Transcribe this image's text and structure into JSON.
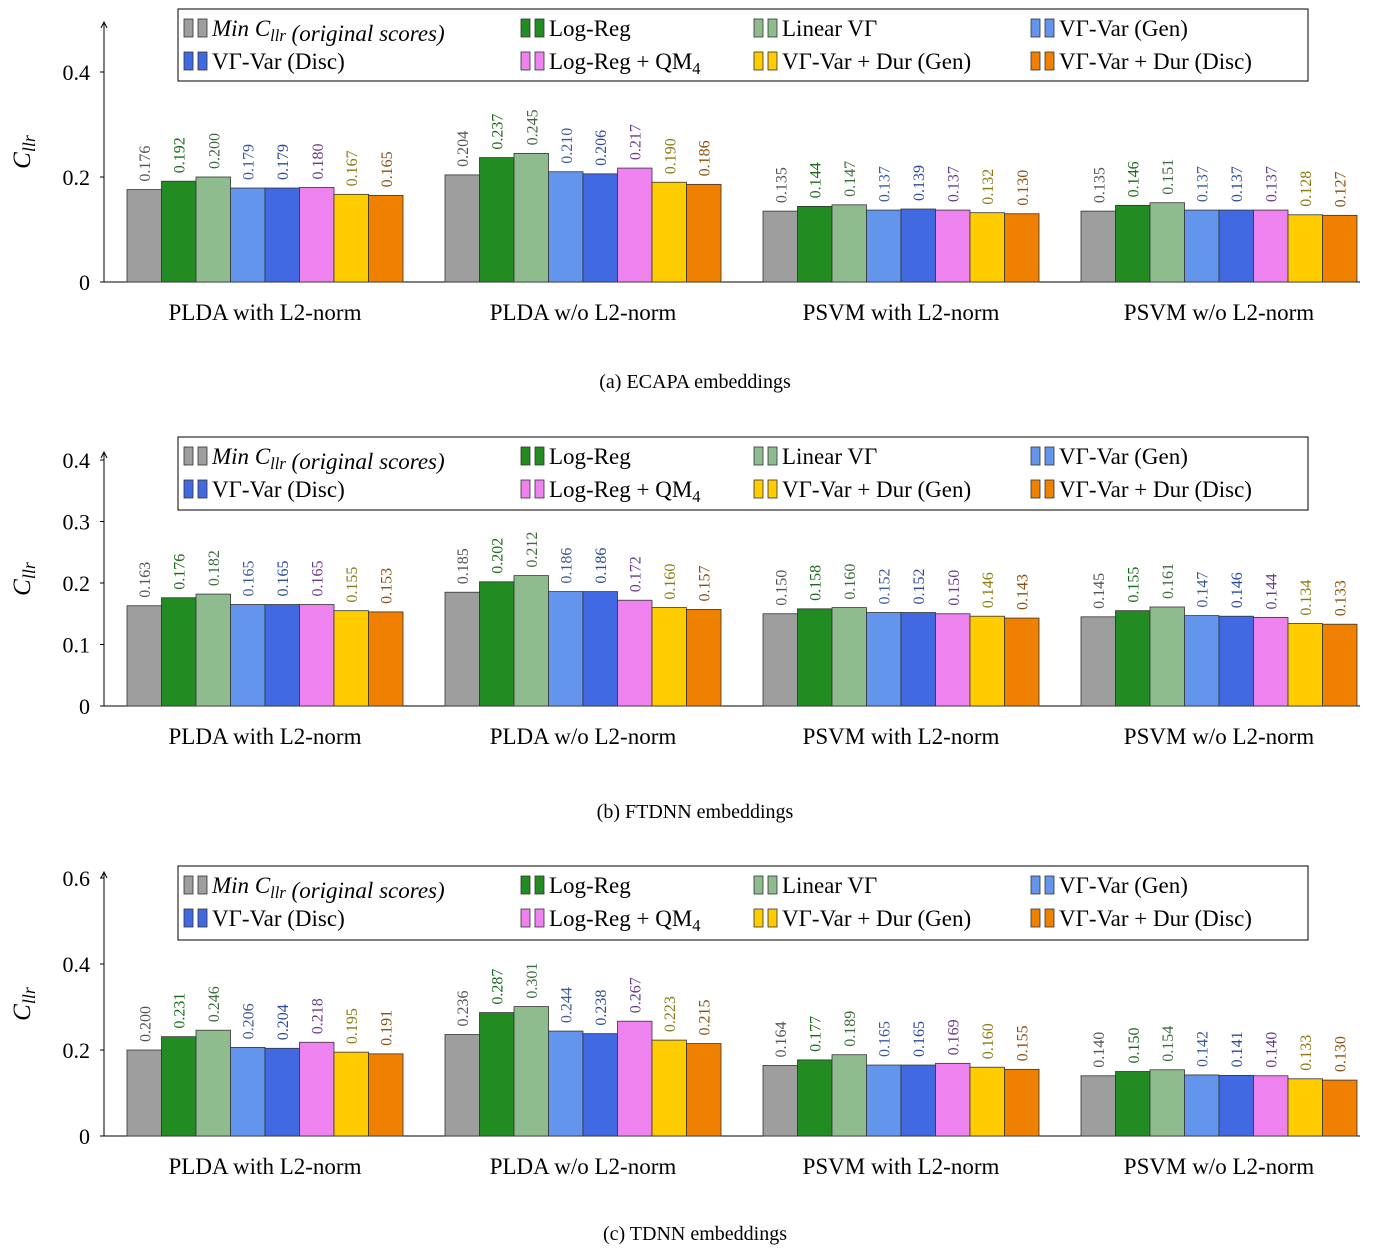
{
  "series_names": [
    "Min C_llr (original scores)",
    "Log-Reg",
    "Linear VΓ",
    "VΓ-Var (Gen)",
    "VΓ-Var (Disc)",
    "Log-Reg + QM4",
    "VΓ-Var + Dur (Gen)",
    "VΓ-Var + Dur (Disc)"
  ],
  "series_colors": [
    "#9e9e9e",
    "#228b22",
    "#8fbc8f",
    "#6495ed",
    "#4169e1",
    "#ee82ee",
    "#ffcc00",
    "#f08000"
  ],
  "label_colors": [
    "#555555",
    "#1a6b1a",
    "#3d6b3d",
    "#3a5a9a",
    "#2b4a9a",
    "#6a3a8a",
    "#8a7a10",
    "#8a5010"
  ],
  "chart_data": [
    {
      "type": "bar",
      "caption": "(a) ECAPA embeddings",
      "ylabel": "C_llr",
      "ylim": [
        0,
        0.4
      ],
      "yticks": [
        "0",
        "0.2",
        "0.4"
      ],
      "yticks_values": [
        0,
        0.2,
        0.4
      ],
      "categories": [
        "PLDA with L2-norm",
        "PLDA w/o L2-norm",
        "PSVM with L2-norm",
        "PSVM w/o L2-norm"
      ],
      "legend_position": "top-center",
      "series": [
        {
          "name": "Min C_llr (original scores)",
          "values": [
            0.176,
            0.204,
            0.135,
            0.135
          ],
          "labels": [
            "0.176",
            "0.204",
            "0.135",
            "0.135"
          ]
        },
        {
          "name": "Log-Reg",
          "values": [
            0.192,
            0.237,
            0.144,
            0.146
          ],
          "labels": [
            "0.192",
            "0.237",
            "0.144",
            "0.146"
          ]
        },
        {
          "name": "Linear VΓ",
          "values": [
            0.2,
            0.245,
            0.147,
            0.151
          ],
          "labels": [
            "0.200",
            "0.245",
            "0.147",
            "0.151"
          ]
        },
        {
          "name": "VΓ-Var (Gen)",
          "values": [
            0.179,
            0.21,
            0.137,
            0.137
          ],
          "labels": [
            "0.179",
            "0.210",
            "0.137",
            "0.137"
          ]
        },
        {
          "name": "VΓ-Var (Disc)",
          "values": [
            0.179,
            0.206,
            0.139,
            0.137
          ],
          "labels": [
            "0.179",
            "0.206",
            "0.139",
            "0.137"
          ]
        },
        {
          "name": "Log-Reg + QM4",
          "values": [
            0.18,
            0.217,
            0.137,
            0.137
          ],
          "labels": [
            "0.180",
            "0.217",
            "0.137",
            "0.137"
          ]
        },
        {
          "name": "VΓ-Var + Dur (Gen)",
          "values": [
            0.167,
            0.19,
            0.132,
            0.128
          ],
          "labels": [
            "0.167",
            "0.190",
            "0.132",
            "0.128"
          ]
        },
        {
          "name": "VΓ-Var + Dur (Disc)",
          "values": [
            0.165,
            0.186,
            0.13,
            0.127
          ],
          "labels": [
            "0.165",
            "0.186",
            "0.130",
            "0.127"
          ]
        }
      ]
    },
    {
      "type": "bar",
      "caption": "(b) FTDNN embeddings",
      "ylabel": "C_llr",
      "ylim": [
        0,
        0.4
      ],
      "yticks": [
        "0",
        "0.1",
        "0.2",
        "0.3",
        "0.4"
      ],
      "yticks_values": [
        0,
        0.1,
        0.2,
        0.3,
        0.4
      ],
      "categories": [
        "PLDA with L2-norm",
        "PLDA w/o L2-norm",
        "PSVM with L2-norm",
        "PSVM w/o L2-norm"
      ],
      "legend_position": "top-center",
      "series": [
        {
          "name": "Min C_llr (original scores)",
          "values": [
            0.163,
            0.185,
            0.15,
            0.145
          ],
          "labels": [
            "0.163",
            "0.185",
            "0.150",
            "0.145"
          ]
        },
        {
          "name": "Log-Reg",
          "values": [
            0.176,
            0.202,
            0.158,
            0.155
          ],
          "labels": [
            "0.176",
            "0.202",
            "0.158",
            "0.155"
          ]
        },
        {
          "name": "Linear VΓ",
          "values": [
            0.182,
            0.212,
            0.16,
            0.161
          ],
          "labels": [
            "0.182",
            "0.212",
            "0.160",
            "0.161"
          ]
        },
        {
          "name": "VΓ-Var (Gen)",
          "values": [
            0.165,
            0.186,
            0.152,
            0.147
          ],
          "labels": [
            "0.165",
            "0.186",
            "0.152",
            "0.147"
          ]
        },
        {
          "name": "VΓ-Var (Disc)",
          "values": [
            0.165,
            0.186,
            0.152,
            0.146
          ],
          "labels": [
            "0.165",
            "0.186",
            "0.152",
            "0.146"
          ]
        },
        {
          "name": "Log-Reg + QM4",
          "values": [
            0.165,
            0.172,
            0.15,
            0.144
          ],
          "labels": [
            "0.165",
            "0.172",
            "0.150",
            "0.144"
          ]
        },
        {
          "name": "VΓ-Var + Dur (Gen)",
          "values": [
            0.155,
            0.16,
            0.146,
            0.134
          ],
          "labels": [
            "0.155",
            "0.160",
            "0.146",
            "0.134"
          ]
        },
        {
          "name": "VΓ-Var + Dur (Disc)",
          "values": [
            0.153,
            0.157,
            0.143,
            0.133
          ],
          "labels": [
            "0.153",
            "0.157",
            "0.143",
            "0.133"
          ]
        }
      ]
    },
    {
      "type": "bar",
      "caption": "(c) TDNN embeddings",
      "ylabel": "C_llr",
      "ylim": [
        0,
        0.6
      ],
      "yticks": [
        "0",
        "0.2",
        "0.4",
        "0.6"
      ],
      "yticks_values": [
        0,
        0.2,
        0.4,
        0.6
      ],
      "categories": [
        "PLDA with L2-norm",
        "PLDA w/o L2-norm",
        "PSVM with L2-norm",
        "PSVM w/o L2-norm"
      ],
      "legend_position": "top-center",
      "series": [
        {
          "name": "Min C_llr (original scores)",
          "values": [
            0.2,
            0.236,
            0.164,
            0.14
          ],
          "labels": [
            "0.200",
            "0.236",
            "0.164",
            "0.140"
          ]
        },
        {
          "name": "Log-Reg",
          "values": [
            0.231,
            0.287,
            0.177,
            0.15
          ],
          "labels": [
            "0.231",
            "0.287",
            "0.177",
            "0.150"
          ]
        },
        {
          "name": "Linear VΓ",
          "values": [
            0.246,
            0.301,
            0.189,
            0.154
          ],
          "labels": [
            "0.246",
            "0.301",
            "0.189",
            "0.154"
          ]
        },
        {
          "name": "VΓ-Var (Gen)",
          "values": [
            0.206,
            0.244,
            0.165,
            0.142
          ],
          "labels": [
            "0.206",
            "0.244",
            "0.165",
            "0.142"
          ]
        },
        {
          "name": "VΓ-Var (Disc)",
          "values": [
            0.204,
            0.238,
            0.165,
            0.141
          ],
          "labels": [
            "0.204",
            "0.238",
            "0.165",
            "0.141"
          ]
        },
        {
          "name": "Log-Reg + QM4",
          "values": [
            0.218,
            0.267,
            0.169,
            0.14
          ],
          "labels": [
            "0.218",
            "0.267",
            "0.169",
            "0.140"
          ]
        },
        {
          "name": "VΓ-Var + Dur (Gen)",
          "values": [
            0.195,
            0.223,
            0.16,
            0.133
          ],
          "labels": [
            "0.195",
            "0.223",
            "0.160",
            "0.133"
          ]
        },
        {
          "name": "VΓ-Var + Dur (Disc)",
          "values": [
            0.191,
            0.215,
            0.155,
            0.13
          ],
          "labels": [
            "0.191",
            "0.215",
            "0.155",
            "0.130"
          ]
        }
      ]
    }
  ]
}
